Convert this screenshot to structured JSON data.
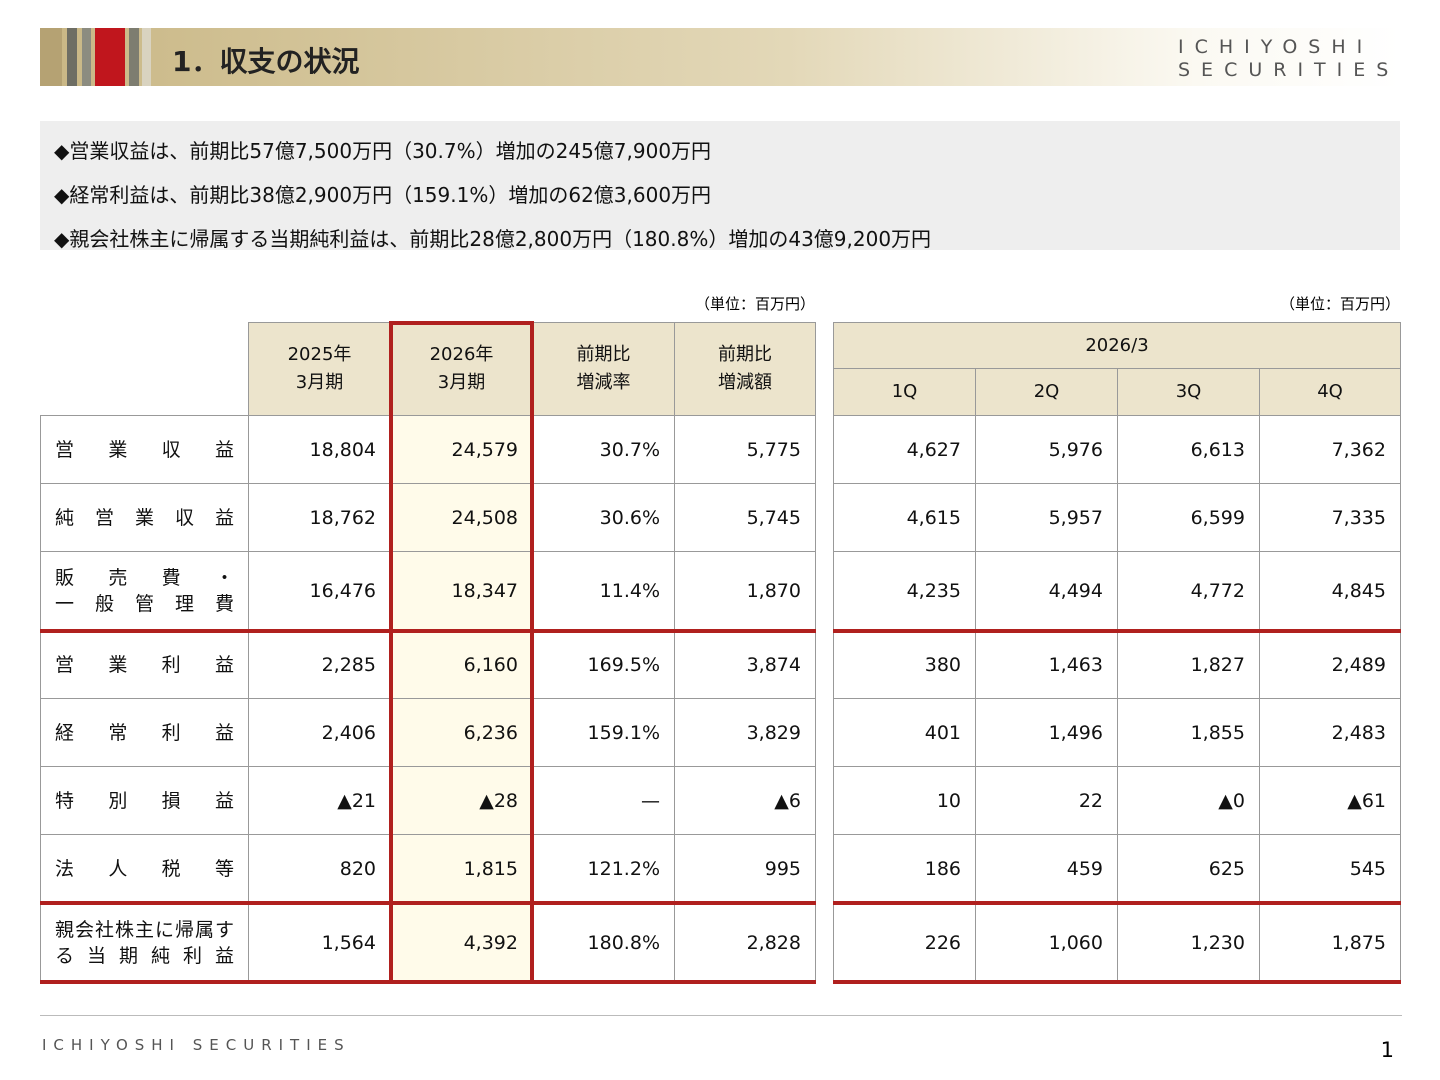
{
  "header": {
    "title": "1．収支の状況",
    "logo": [
      "ICHIYOSHI",
      "SECURITIES"
    ]
  },
  "summary": [
    "◆営業収益は、前期比57億7,500万円（30.7%）増加の245億7,900万円",
    "◆経常利益は、前期比38億2,900万円（159.1%）増加の62億3,600万円",
    "◆親会社株主に帰属する当期純利益は、前期比28億2,800万円（180.8%）増加の43億9,200万円"
  ],
  "left_table": {
    "unit": "（単位：百万円）",
    "headers": [
      [
        "2025年",
        "3月期"
      ],
      [
        "2026年",
        "3月期"
      ],
      [
        "前期比",
        "増減率"
      ],
      [
        "前期比",
        "増減額"
      ]
    ]
  },
  "right_table": {
    "unit": "（単位：百万円）",
    "period": "2026/3",
    "headers": [
      "1Q",
      "2Q",
      "3Q",
      "4Q"
    ]
  },
  "rows": [
    {
      "label": [
        "営業収益"
      ],
      "left": [
        "18,804",
        "24,579",
        "30.7%",
        "5,775"
      ],
      "right": [
        "4,627",
        "5,976",
        "6,613",
        "7,362"
      ]
    },
    {
      "label": [
        "純営業収益"
      ],
      "left": [
        "18,762",
        "24,508",
        "30.6%",
        "5,745"
      ],
      "right": [
        "4,615",
        "5,957",
        "6,599",
        "7,335"
      ]
    },
    {
      "label": [
        "販売費・",
        "一般管理費"
      ],
      "left": [
        "16,476",
        "18,347",
        "11.4%",
        "1,870"
      ],
      "right": [
        "4,235",
        "4,494",
        "4,772",
        "4,845"
      ]
    },
    {
      "label": [
        "営業利益"
      ],
      "left": [
        "2,285",
        "6,160",
        "169.5%",
        "3,874"
      ],
      "right": [
        "380",
        "1,463",
        "1,827",
        "2,489"
      ]
    },
    {
      "label": [
        "経常利益"
      ],
      "left": [
        "2,406",
        "6,236",
        "159.1%",
        "3,829"
      ],
      "right": [
        "401",
        "1,496",
        "1,855",
        "2,483"
      ]
    },
    {
      "label": [
        "特別損益"
      ],
      "left": [
        "▲21",
        "▲28",
        "—",
        "▲6"
      ],
      "right": [
        "10",
        "22",
        "▲0",
        "▲61"
      ]
    },
    {
      "label": [
        "法人税等"
      ],
      "left": [
        "820",
        "1,815",
        "121.2%",
        "995"
      ],
      "right": [
        "186",
        "459",
        "625",
        "545"
      ]
    },
    {
      "label": [
        "親会社株主に帰属す",
        "る当期純利益"
      ],
      "left": [
        "1,564",
        "4,392",
        "180.8%",
        "2,828"
      ],
      "right": [
        "226",
        "1,060",
        "1,230",
        "1,875"
      ]
    }
  ],
  "footer": {
    "logo": "ICHIYOSHI SECURITIES",
    "page": "1"
  }
}
